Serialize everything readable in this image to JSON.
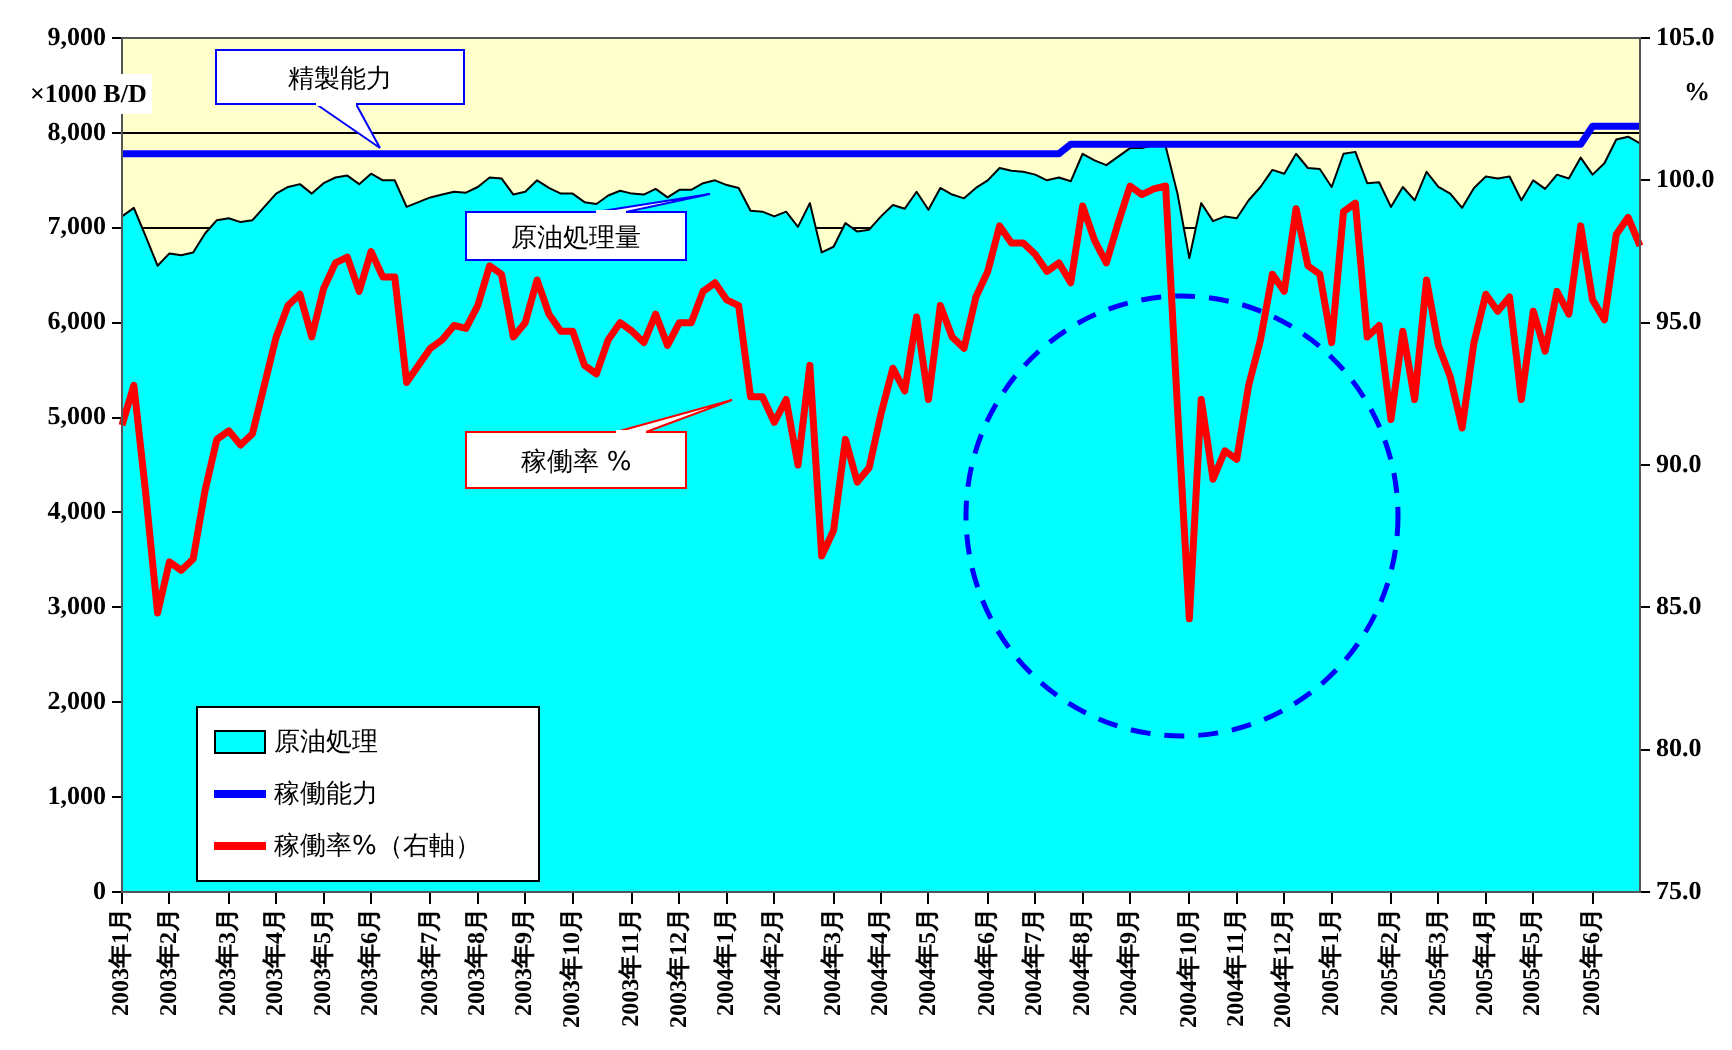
{
  "chart_data": {
    "type": "area",
    "ylabel": "×1000 B/D",
    "y2label": "%",
    "annotations": [
      "精製能力",
      "原油処理量",
      "稼働率 %"
    ],
    "categories": [
      "2003年1月",
      null,
      null,
      null,
      "2003年2月",
      null,
      null,
      null,
      null,
      "2003年3月",
      null,
      null,
      null,
      "2003年4月",
      null,
      null,
      null,
      "2003年5月",
      null,
      null,
      null,
      "2003年6月",
      null,
      null,
      null,
      null,
      "2003年7月",
      null,
      null,
      null,
      "2003年8月",
      null,
      null,
      null,
      "2003年9月",
      null,
      null,
      null,
      "2003年10月",
      null,
      null,
      null,
      null,
      "2003年11月",
      null,
      null,
      null,
      "2003年12月",
      null,
      null,
      null,
      "2004年1月",
      null,
      null,
      null,
      "2004年2月",
      null,
      null,
      null,
      null,
      "2004年3月",
      null,
      null,
      null,
      "2004年4月",
      null,
      null,
      null,
      "2004年5月",
      null,
      null,
      null,
      null,
      "2004年6月",
      null,
      null,
      null,
      "2004年7月",
      null,
      null,
      null,
      "2004年8月",
      null,
      null,
      null,
      "2004年9月",
      null,
      null,
      null,
      null,
      "2004年10月",
      null,
      null,
      null,
      "2004年11月",
      null,
      null,
      null,
      "2004年12月",
      null,
      null,
      null,
      "2005年1月",
      null,
      null,
      null,
      null,
      "2005年2月",
      null,
      null,
      null,
      "2005年3月",
      null,
      null,
      null,
      "2005年4月",
      null,
      null,
      null,
      "2005年5月",
      null,
      null,
      null,
      null,
      "2005年6月",
      null,
      null,
      null,
      null
    ],
    "series": [
      {
        "name": "原油処理",
        "type": "area",
        "color": "#00ffff",
        "values": [
          7120,
          7210,
          6910,
          6600,
          6730,
          6710,
          6740,
          6940,
          7080,
          7100,
          7060,
          7080,
          7220,
          7360,
          7430,
          7460,
          7360,
          7470,
          7530,
          7550,
          7460,
          7570,
          7500,
          7500,
          7220,
          7270,
          7320,
          7350,
          7380,
          7370,
          7430,
          7530,
          7520,
          7350,
          7380,
          7500,
          7420,
          7360,
          7360,
          7270,
          7250,
          7340,
          7390,
          7360,
          7350,
          7410,
          7320,
          7400,
          7400,
          7470,
          7500,
          7450,
          7420,
          7180,
          7170,
          7120,
          7170,
          7010,
          7260,
          6740,
          6800,
          7050,
          6960,
          6980,
          7120,
          7240,
          7200,
          7380,
          7190,
          7420,
          7350,
          7310,
          7420,
          7500,
          7630,
          7600,
          7590,
          7560,
          7500,
          7530,
          7490,
          7780,
          7710,
          7660,
          7750,
          7840,
          7840,
          7870,
          7860,
          7360,
          6680,
          7260,
          7070,
          7120,
          7100,
          7290,
          7430,
          7610,
          7570,
          7780,
          7630,
          7620,
          7430,
          7780,
          7800,
          7470,
          7480,
          7220,
          7430,
          7290,
          7590,
          7430,
          7360,
          7210,
          7420,
          7540,
          7520,
          7540,
          7290,
          7500,
          7410,
          7560,
          7520,
          7740,
          7560,
          7680,
          7930,
          7960,
          7890
        ]
      },
      {
        "name": "稼働能力",
        "type": "line",
        "color": "#0000ff",
        "values": [
          7780,
          7780,
          7780,
          7780,
          7780,
          7780,
          7780,
          7780,
          7780,
          7780,
          7780,
          7780,
          7780,
          7780,
          7780,
          7780,
          7780,
          7780,
          7780,
          7780,
          7780,
          7780,
          7780,
          7780,
          7780,
          7780,
          7780,
          7780,
          7780,
          7780,
          7780,
          7780,
          7780,
          7780,
          7780,
          7780,
          7780,
          7780,
          7780,
          7780,
          7780,
          7780,
          7780,
          7780,
          7780,
          7780,
          7780,
          7780,
          7780,
          7780,
          7780,
          7780,
          7780,
          7780,
          7780,
          7780,
          7780,
          7780,
          7780,
          7780,
          7780,
          7780,
          7780,
          7780,
          7780,
          7780,
          7780,
          7780,
          7780,
          7780,
          7780,
          7780,
          7780,
          7780,
          7780,
          7780,
          7780,
          7780,
          7780,
          7780,
          7880,
          7880,
          7880,
          7880,
          7880,
          7880,
          7880,
          7880,
          7880,
          7880,
          7880,
          7880,
          7880,
          7880,
          7880,
          7880,
          7880,
          7880,
          7880,
          7880,
          7880,
          7880,
          7880,
          7880,
          7880,
          7880,
          7880,
          7880,
          7880,
          7880,
          7880,
          7880,
          7880,
          7880,
          7880,
          7880,
          7880,
          7880,
          7880,
          7880,
          7880,
          7880,
          7880,
          7880,
          8070,
          8070,
          8070,
          8070,
          8070
        ]
      },
      {
        "name": "稼働率%（右軸）",
        "type": "line",
        "axis": "y2",
        "color": "#ff0000",
        "values": [
          91.4,
          92.8,
          89.0,
          84.8,
          86.6,
          86.3,
          86.7,
          89.1,
          90.9,
          91.2,
          90.7,
          91.1,
          92.8,
          94.5,
          95.6,
          96.0,
          94.5,
          96.2,
          97.1,
          97.3,
          96.1,
          97.5,
          96.6,
          96.6,
          92.9,
          93.5,
          94.1,
          94.4,
          94.9,
          94.8,
          95.6,
          97.0,
          96.7,
          94.5,
          95.0,
          96.5,
          95.3,
          94.7,
          94.7,
          93.5,
          93.2,
          94.4,
          95.0,
          94.7,
          94.3,
          95.3,
          94.2,
          95.0,
          95.0,
          96.1,
          96.4,
          95.8,
          95.6,
          92.4,
          92.4,
          91.5,
          92.3,
          90.0,
          93.5,
          86.8,
          87.7,
          90.9,
          89.4,
          89.9,
          91.8,
          93.4,
          92.6,
          95.2,
          92.3,
          95.6,
          94.5,
          94.1,
          95.9,
          96.8,
          98.4,
          97.8,
          97.8,
          97.4,
          96.8,
          97.1,
          96.4,
          99.1,
          97.9,
          97.1,
          98.5,
          99.8,
          99.5,
          99.7,
          99.8,
          92.0,
          84.6,
          92.3,
          89.5,
          90.5,
          90.2,
          92.8,
          94.4,
          96.7,
          96.1,
          99.0,
          97.0,
          96.7,
          94.3,
          98.9,
          99.2,
          94.5,
          94.9,
          91.6,
          94.7,
          92.3,
          96.5,
          94.2,
          93.1,
          91.3,
          94.3,
          96.0,
          95.4,
          95.9,
          92.3,
          95.4,
          94.0,
          96.1,
          95.3,
          98.4,
          95.8,
          95.1,
          98.1,
          98.7,
          97.7
        ]
      }
    ],
    "ylim": [
      0,
      9000
    ],
    "yticks": [
      {
        "value": 0,
        "label": "0"
      },
      {
        "value": 1000,
        "label": "1,000"
      },
      {
        "value": 2000,
        "label": "2,000"
      },
      {
        "value": 3000,
        "label": "3,000"
      },
      {
        "value": 4000,
        "label": "4,000"
      },
      {
        "value": 5000,
        "label": "5,000"
      },
      {
        "value": 6000,
        "label": "6,000"
      },
      {
        "value": 7000,
        "label": "7,000"
      },
      {
        "value": 8000,
        "label": "8,000"
      },
      {
        "value": 9000,
        "label": "9,000"
      }
    ],
    "y2lim": [
      75,
      105
    ],
    "y2ticks": [
      {
        "value": 75,
        "label": "75.0"
      },
      {
        "value": 80,
        "label": "80.0"
      },
      {
        "value": 85,
        "label": "85.0"
      },
      {
        "value": 90,
        "label": "90.0"
      },
      {
        "value": 95,
        "label": "95.0"
      },
      {
        "value": 100,
        "label": "100.0"
      },
      {
        "value": 105,
        "label": "105.0"
      }
    ],
    "grid": "y",
    "legend": "bottom left",
    "marker": "none",
    "line_style": "solid"
  }
}
